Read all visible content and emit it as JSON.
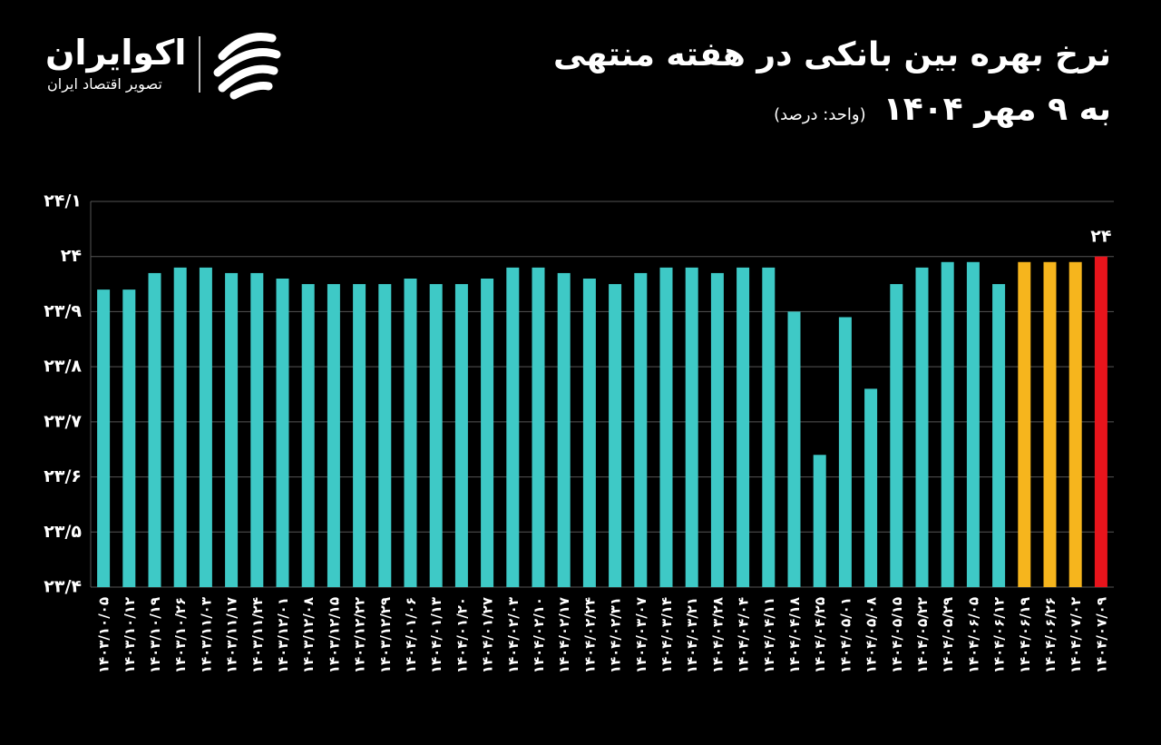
{
  "brand": {
    "name": "اکوایران",
    "tagline": "تصویر اقتصاد ایران"
  },
  "chart_data": {
    "type": "bar",
    "title": "نرخ بهره بین بانکی در هفته منتهی",
    "subtitle": "به ۹ مهر ۱۴۰۴",
    "unit": "(واحد: درصد)",
    "categories": [
      "۱۴۰۳/۱۰/۰۵",
      "۱۴۰۳/۱۰/۱۲",
      "۱۴۰۳/۱۰/۱۹",
      "۱۴۰۳/۱۰/۲۶",
      "۱۴۰۳/۱۱/۰۳",
      "۱۴۰۳/۱۱/۱۷",
      "۱۴۰۳/۱۱/۲۴",
      "۱۴۰۳/۱۲/۰۱",
      "۱۴۰۳/۱۲/۰۸",
      "۱۴۰۳/۱۲/۱۵",
      "۱۴۰۳/۱۲/۲۲",
      "۱۴۰۳/۱۲/۲۹",
      "۱۴۰۴/۰۱/۰۶",
      "۱۴۰۴/۰۱/۱۳",
      "۱۴۰۴/۰۱/۲۰",
      "۱۴۰۴/۰۱/۲۷",
      "۱۴۰۴/۰۲/۰۳",
      "۱۴۰۴/۰۲/۱۰",
      "۱۴۰۴/۰۲/۱۷",
      "۱۴۰۴/۰۲/۲۴",
      "۱۴۰۴/۰۲/۳۱",
      "۱۴۰۴/۰۳/۰۷",
      "۱۴۰۴/۰۳/۱۴",
      "۱۴۰۴/۰۳/۲۱",
      "۱۴۰۴/۰۳/۲۸",
      "۱۴۰۴/۰۴/۰۴",
      "۱۴۰۴/۰۴/۱۱",
      "۱۴۰۴/۰۴/۱۸",
      "۱۴۰۴/۰۴/۲۵",
      "۱۴۰۴/۰۵/۰۱",
      "۱۴۰۴/۰۵/۰۸",
      "۱۴۰۴/۰۵/۱۵",
      "۱۴۰۴/۰۵/۲۲",
      "۱۴۰۴/۰۵/۲۹",
      "۱۴۰۴/۰۶/۰۵",
      "۱۴۰۴/۰۶/۱۲",
      "۱۴۰۴/۰۶/۱۹",
      "۱۴۰۴/۰۶/۲۶",
      "۱۴۰۴/۰۷/۰۲",
      "۱۴۰۴/۰۷/۰۹"
    ],
    "values": [
      23.94,
      23.94,
      23.97,
      23.98,
      23.98,
      23.97,
      23.97,
      23.96,
      23.95,
      23.95,
      23.95,
      23.95,
      23.96,
      23.95,
      23.95,
      23.96,
      23.98,
      23.98,
      23.97,
      23.96,
      23.95,
      23.97,
      23.98,
      23.98,
      23.97,
      23.98,
      23.98,
      23.9,
      23.64,
      23.89,
      23.76,
      23.95,
      23.98,
      23.99,
      23.99,
      23.95,
      23.99,
      23.99,
      23.99,
      24
    ],
    "value_labels": [
      null,
      null,
      null,
      null,
      null,
      null,
      null,
      null,
      null,
      null,
      null,
      null,
      null,
      null,
      null,
      null,
      null,
      null,
      null,
      null,
      null,
      null,
      null,
      null,
      null,
      null,
      null,
      null,
      null,
      null,
      null,
      null,
      null,
      null,
      null,
      null,
      null,
      null,
      null,
      "۲۴"
    ],
    "colors": [
      "#3ec9c6",
      "#3ec9c6",
      "#3ec9c6",
      "#3ec9c6",
      "#3ec9c6",
      "#3ec9c6",
      "#3ec9c6",
      "#3ec9c6",
      "#3ec9c6",
      "#3ec9c6",
      "#3ec9c6",
      "#3ec9c6",
      "#3ec9c6",
      "#3ec9c6",
      "#3ec9c6",
      "#3ec9c6",
      "#3ec9c6",
      "#3ec9c6",
      "#3ec9c6",
      "#3ec9c6",
      "#3ec9c6",
      "#3ec9c6",
      "#3ec9c6",
      "#3ec9c6",
      "#3ec9c6",
      "#3ec9c6",
      "#3ec9c6",
      "#3ec9c6",
      "#3ec9c6",
      "#3ec9c6",
      "#3ec9c6",
      "#3ec9c6",
      "#3ec9c6",
      "#3ec9c6",
      "#3ec9c6",
      "#3ec9c6",
      "#f6b51d",
      "#f6b51d",
      "#f6b51d",
      "#e8141c"
    ],
    "ylim": [
      23.4,
      24.1
    ],
    "yticks": [
      {
        "value": 23.4,
        "label": "۲۳/۴"
      },
      {
        "value": 23.5,
        "label": "۲۳/۵"
      },
      {
        "value": 23.6,
        "label": "۲۳/۶"
      },
      {
        "value": 23.7,
        "label": "۲۳/۷"
      },
      {
        "value": 23.8,
        "label": "۲۳/۸"
      },
      {
        "value": 23.9,
        "label": "۲۳/۹"
      },
      {
        "value": 24,
        "label": "۲۴"
      },
      {
        "value": 24.1,
        "label": "۲۴/۱"
      }
    ],
    "grid": true
  }
}
